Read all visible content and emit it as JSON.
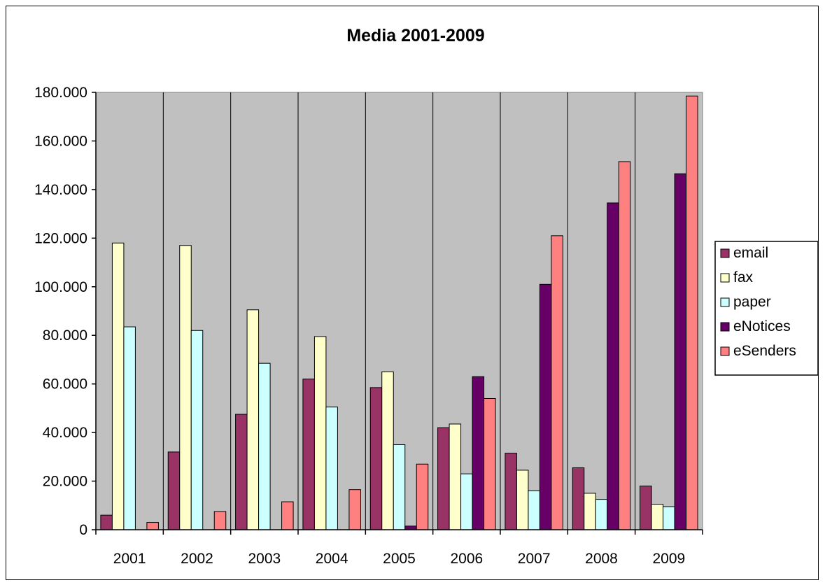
{
  "chart_data": {
    "type": "bar",
    "title": "Media 2001-2009",
    "xlabel": "",
    "ylabel": "",
    "ylim": [
      0,
      180000
    ],
    "yticks": [
      0,
      20000,
      40000,
      60000,
      80000,
      100000,
      120000,
      140000,
      160000,
      180000
    ],
    "ytick_labels": [
      "0",
      "20.000",
      "40.000",
      "60.000",
      "80.000",
      "100.000",
      "120.000",
      "140.000",
      "160.000",
      "180.000"
    ],
    "grid": "vertical lines between categories",
    "plot_background": "#c0c0c0",
    "legend_position": "right",
    "categories": [
      "2001",
      "2002",
      "2003",
      "2004",
      "2005",
      "2006",
      "2007",
      "2008",
      "2009"
    ],
    "series": [
      {
        "name": "email",
        "color": "#993366",
        "values": [
          6000,
          32000,
          47500,
          62000,
          58500,
          42000,
          31500,
          25500,
          18000
        ]
      },
      {
        "name": "fax",
        "color": "#ffffcc",
        "values": [
          118000,
          117000,
          90500,
          79500,
          65000,
          43500,
          24500,
          15000,
          10500
        ]
      },
      {
        "name": "paper",
        "color": "#ccffff",
        "values": [
          83500,
          82000,
          68500,
          50500,
          35000,
          23000,
          16000,
          12500,
          9500
        ]
      },
      {
        "name": "eNotices",
        "color": "#660066",
        "values": [
          0,
          0,
          0,
          0,
          1500,
          63000,
          101000,
          134500,
          146500
        ]
      },
      {
        "name": "eSenders",
        "color": "#ff8080",
        "values": [
          3000,
          7500,
          11500,
          16500,
          27000,
          54000,
          121000,
          151500,
          178500
        ]
      }
    ]
  }
}
